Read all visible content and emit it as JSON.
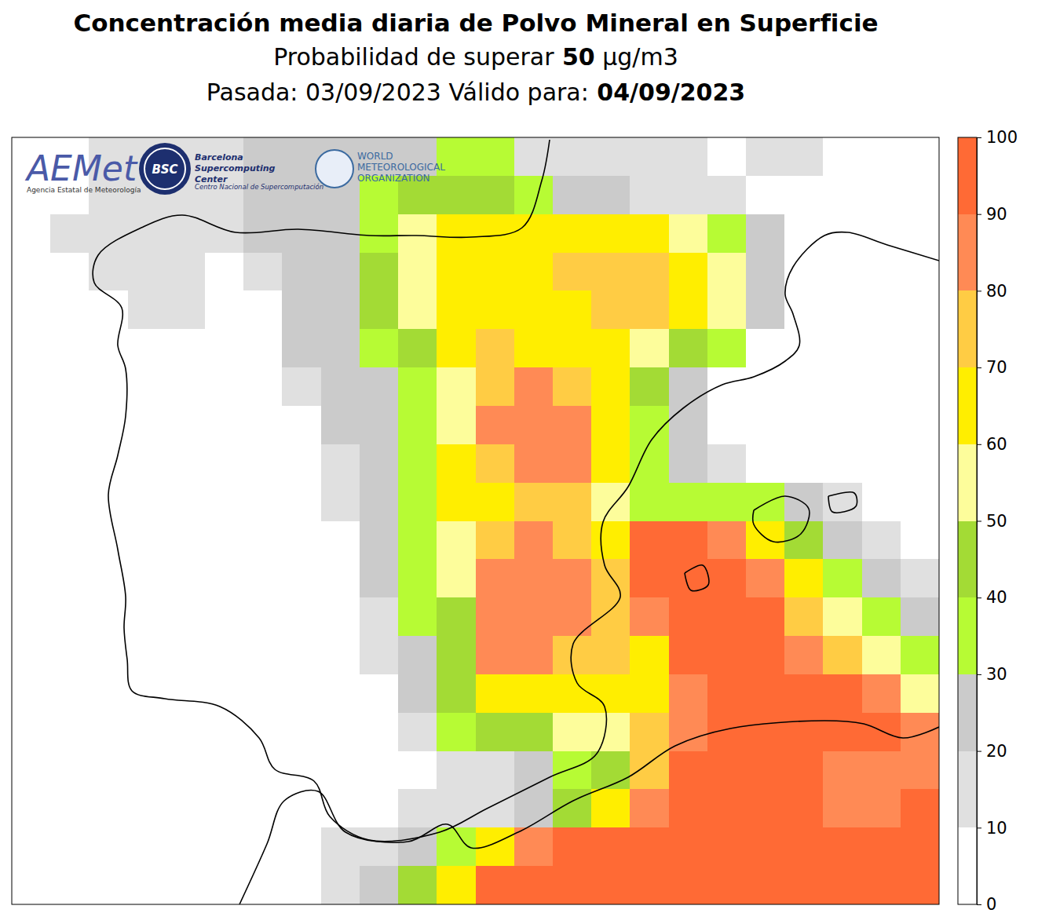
{
  "chart_data": {
    "type": "heatmap",
    "title": "Concentración media diaria de Polvo Mineral en Superficie",
    "subtitle": [
      "Probabilidad de superar",
      "50",
      "µg/m3"
    ],
    "run": [
      "Pasada: 03/09/2023 Válido para:",
      "04/09/2023"
    ],
    "annotations": [
      "AEMet",
      "Agencia Estatal de Meteorología",
      "BSC",
      "Barcelona",
      "Supercomputing",
      "Center",
      "Centro Nacional de Supercomputación",
      "WORLD",
      "METEOROLOGICAL",
      "ORGANIZATION"
    ],
    "colorbar": {
      "range": [
        0,
        100
      ],
      "ticks": [
        0,
        10,
        20,
        30,
        40,
        50,
        60,
        70,
        80,
        90,
        100
      ],
      "colors": [
        "#ffffff",
        "#e0e0e0",
        "#cbcbcb",
        "#b7fb34",
        "#a3db35",
        "#fdfd9b",
        "#ffee00",
        "#ffcc44",
        "#ff8a55",
        "#ff6a35"
      ]
    },
    "cells": [
      [
        5,
        5,
        15,
        15,
        15,
        15,
        25,
        25,
        25,
        25,
        25,
        35,
        35,
        15,
        15,
        15,
        15,
        15,
        5,
        15,
        15,
        5,
        5,
        5
      ],
      [
        5,
        5,
        15,
        15,
        15,
        15,
        25,
        25,
        25,
        35,
        45,
        45,
        45,
        35,
        25,
        25,
        15,
        15,
        15,
        5,
        5,
        5,
        5,
        5
      ],
      [
        5,
        15,
        15,
        15,
        15,
        15,
        25,
        25,
        25,
        35,
        55,
        65,
        65,
        65,
        65,
        65,
        65,
        55,
        35,
        25,
        5,
        5,
        5,
        5
      ],
      [
        5,
        5,
        15,
        15,
        15,
        5,
        15,
        25,
        25,
        45,
        55,
        65,
        65,
        65,
        75,
        75,
        75,
        65,
        55,
        25,
        5,
        5,
        5,
        5
      ],
      [
        5,
        5,
        5,
        15,
        15,
        5,
        5,
        25,
        25,
        45,
        55,
        65,
        65,
        65,
        65,
        75,
        75,
        65,
        55,
        25,
        5,
        5,
        5,
        5
      ],
      [
        5,
        5,
        5,
        5,
        5,
        5,
        5,
        25,
        25,
        35,
        45,
        65,
        75,
        65,
        65,
        65,
        55,
        45,
        35,
        5,
        5,
        5,
        5,
        5
      ],
      [
        5,
        5,
        5,
        5,
        5,
        5,
        5,
        15,
        25,
        25,
        35,
        55,
        75,
        85,
        75,
        65,
        45,
        25,
        5,
        5,
        5,
        5,
        5,
        5
      ],
      [
        5,
        5,
        5,
        5,
        5,
        5,
        5,
        5,
        25,
        25,
        35,
        55,
        85,
        85,
        85,
        65,
        35,
        25,
        5,
        5,
        5,
        5,
        5,
        5
      ],
      [
        5,
        5,
        5,
        5,
        5,
        5,
        5,
        5,
        15,
        25,
        35,
        65,
        75,
        85,
        85,
        65,
        35,
        25,
        15,
        5,
        5,
        5,
        5,
        5
      ],
      [
        5,
        5,
        5,
        5,
        5,
        5,
        5,
        5,
        15,
        25,
        35,
        65,
        65,
        75,
        75,
        55,
        35,
        35,
        35,
        35,
        25,
        15,
        5,
        5
      ],
      [
        5,
        5,
        5,
        5,
        5,
        5,
        5,
        5,
        5,
        25,
        35,
        55,
        75,
        85,
        75,
        65,
        95,
        95,
        85,
        65,
        45,
        25,
        15,
        5
      ],
      [
        5,
        5,
        5,
        5,
        5,
        5,
        5,
        5,
        5,
        25,
        35,
        55,
        85,
        85,
        85,
        75,
        95,
        95,
        95,
        85,
        65,
        35,
        25,
        15
      ],
      [
        5,
        5,
        5,
        5,
        5,
        5,
        5,
        5,
        5,
        15,
        35,
        45,
        85,
        85,
        85,
        75,
        85,
        95,
        95,
        95,
        75,
        55,
        35,
        25
      ],
      [
        5,
        5,
        5,
        5,
        5,
        5,
        5,
        5,
        5,
        15,
        25,
        45,
        85,
        85,
        75,
        75,
        65,
        95,
        95,
        95,
        85,
        75,
        55,
        35
      ],
      [
        5,
        5,
        5,
        5,
        5,
        5,
        5,
        5,
        5,
        5,
        25,
        45,
        65,
        65,
        65,
        65,
        65,
        85,
        95,
        95,
        95,
        95,
        85,
        55
      ],
      [
        5,
        5,
        5,
        5,
        5,
        5,
        5,
        5,
        5,
        5,
        15,
        35,
        45,
        45,
        55,
        55,
        75,
        85,
        95,
        95,
        95,
        95,
        95,
        85
      ],
      [
        5,
        5,
        5,
        5,
        5,
        5,
        5,
        5,
        5,
        5,
        5,
        15,
        15,
        25,
        35,
        45,
        75,
        95,
        95,
        95,
        95,
        85,
        85,
        85
      ],
      [
        5,
        5,
        5,
        5,
        5,
        5,
        5,
        5,
        5,
        5,
        15,
        15,
        15,
        25,
        45,
        65,
        85,
        95,
        95,
        95,
        95,
        85,
        85,
        95
      ],
      [
        5,
        5,
        5,
        5,
        5,
        5,
        5,
        5,
        15,
        15,
        25,
        35,
        65,
        85,
        95,
        95,
        95,
        95,
        95,
        95,
        95,
        95,
        95,
        95
      ],
      [
        5,
        5,
        5,
        5,
        5,
        5,
        5,
        5,
        15,
        25,
        45,
        65,
        95,
        95,
        95,
        95,
        95,
        95,
        95,
        95,
        95,
        95,
        95,
        95
      ]
    ]
  }
}
